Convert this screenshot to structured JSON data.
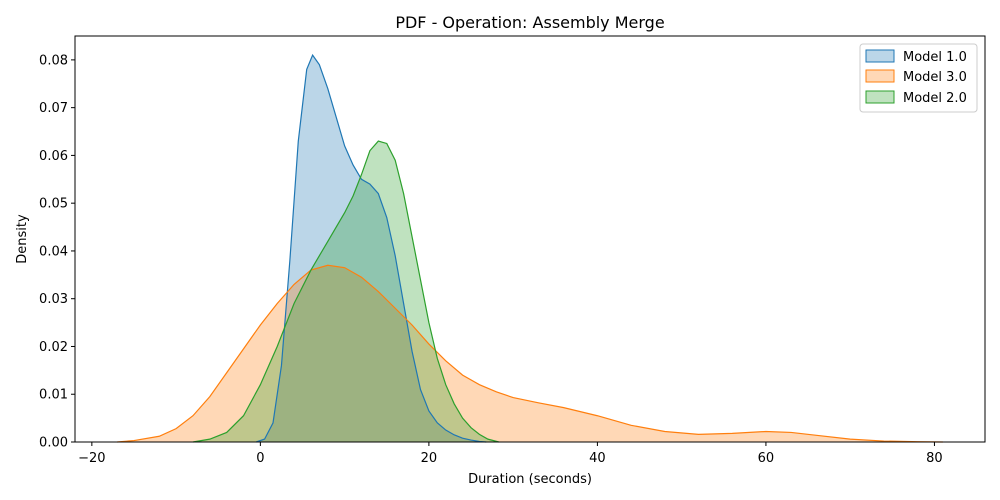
{
  "chart_data": {
    "type": "area",
    "title": "PDF - Operation: Assembly Merge",
    "xlabel": "Duration (seconds)",
    "ylabel": "Density",
    "xlim": [
      -22,
      86
    ],
    "ylim": [
      0,
      0.085
    ],
    "x_ticks": [
      -20,
      0,
      20,
      40,
      60,
      80
    ],
    "y_ticks": [
      0.0,
      0.01,
      0.02,
      0.03,
      0.04,
      0.05,
      0.06,
      0.07,
      0.08
    ],
    "x_tick_labels": [
      "−20",
      "0",
      "20",
      "40",
      "60",
      "80"
    ],
    "y_tick_labels": [
      "0.00",
      "0.01",
      "0.02",
      "0.03",
      "0.04",
      "0.05",
      "0.06",
      "0.07",
      "0.08"
    ],
    "grid": false,
    "legend_position": "top-right",
    "series": [
      {
        "name": "Model 1.0",
        "color": "#1f77b4",
        "points": [
          [
            -0.5,
            0
          ],
          [
            0.5,
            0.0006
          ],
          [
            1.5,
            0.004
          ],
          [
            2.5,
            0.016
          ],
          [
            3.5,
            0.038
          ],
          [
            4.5,
            0.063
          ],
          [
            5.5,
            0.078
          ],
          [
            6.2,
            0.081
          ],
          [
            7,
            0.079
          ],
          [
            8,
            0.074
          ],
          [
            9,
            0.068
          ],
          [
            10,
            0.062
          ],
          [
            11,
            0.058
          ],
          [
            12,
            0.055
          ],
          [
            13,
            0.054
          ],
          [
            14,
            0.052
          ],
          [
            15,
            0.047
          ],
          [
            16,
            0.039
          ],
          [
            17,
            0.029
          ],
          [
            18,
            0.019
          ],
          [
            19,
            0.011
          ],
          [
            20,
            0.0065
          ],
          [
            21,
            0.004
          ],
          [
            22,
            0.0025
          ],
          [
            23,
            0.0015
          ],
          [
            24,
            0.0008
          ],
          [
            25,
            0.0004
          ],
          [
            26,
            0.0001
          ],
          [
            26.8,
            0
          ]
        ]
      },
      {
        "name": "Model 3.0",
        "color": "#ff7f0e",
        "points": [
          [
            -17,
            0
          ],
          [
            -15,
            0.0003
          ],
          [
            -12,
            0.0012
          ],
          [
            -10,
            0.0028
          ],
          [
            -8,
            0.0055
          ],
          [
            -6,
            0.0095
          ],
          [
            -4,
            0.0145
          ],
          [
            -2,
            0.0195
          ],
          [
            0,
            0.0245
          ],
          [
            2,
            0.029
          ],
          [
            4,
            0.033
          ],
          [
            6,
            0.036
          ],
          [
            8,
            0.037
          ],
          [
            10,
            0.0365
          ],
          [
            12,
            0.0345
          ],
          [
            14,
            0.0315
          ],
          [
            16,
            0.028
          ],
          [
            18,
            0.0245
          ],
          [
            20,
            0.0205
          ],
          [
            22,
            0.017
          ],
          [
            24,
            0.014
          ],
          [
            26,
            0.012
          ],
          [
            28,
            0.0105
          ],
          [
            30,
            0.0093
          ],
          [
            33,
            0.0082
          ],
          [
            36,
            0.0072
          ],
          [
            40,
            0.0055
          ],
          [
            44,
            0.0035
          ],
          [
            48,
            0.0022
          ],
          [
            52,
            0.0016
          ],
          [
            56,
            0.0018
          ],
          [
            60,
            0.0022
          ],
          [
            63,
            0.002
          ],
          [
            66,
            0.0014
          ],
          [
            70,
            0.0006
          ],
          [
            74,
            0.0002
          ],
          [
            78,
            5e-05
          ],
          [
            81,
            0
          ]
        ]
      },
      {
        "name": "Model 2.0",
        "color": "#2ca02c",
        "points": [
          [
            -8,
            0
          ],
          [
            -6,
            0.0006
          ],
          [
            -4,
            0.002
          ],
          [
            -2,
            0.0055
          ],
          [
            0,
            0.012
          ],
          [
            2,
            0.02
          ],
          [
            4,
            0.029
          ],
          [
            6,
            0.036
          ],
          [
            8,
            0.042
          ],
          [
            10,
            0.048
          ],
          [
            11,
            0.0515
          ],
          [
            12,
            0.056
          ],
          [
            13,
            0.061
          ],
          [
            14,
            0.063
          ],
          [
            15,
            0.0625
          ],
          [
            16,
            0.059
          ],
          [
            17,
            0.052
          ],
          [
            18,
            0.043
          ],
          [
            19,
            0.034
          ],
          [
            20,
            0.025
          ],
          [
            21,
            0.0175
          ],
          [
            22,
            0.012
          ],
          [
            23,
            0.008
          ],
          [
            24,
            0.005
          ],
          [
            25,
            0.003
          ],
          [
            26,
            0.0016
          ],
          [
            27,
            0.0006
          ],
          [
            28.3,
            0
          ]
        ]
      }
    ]
  }
}
